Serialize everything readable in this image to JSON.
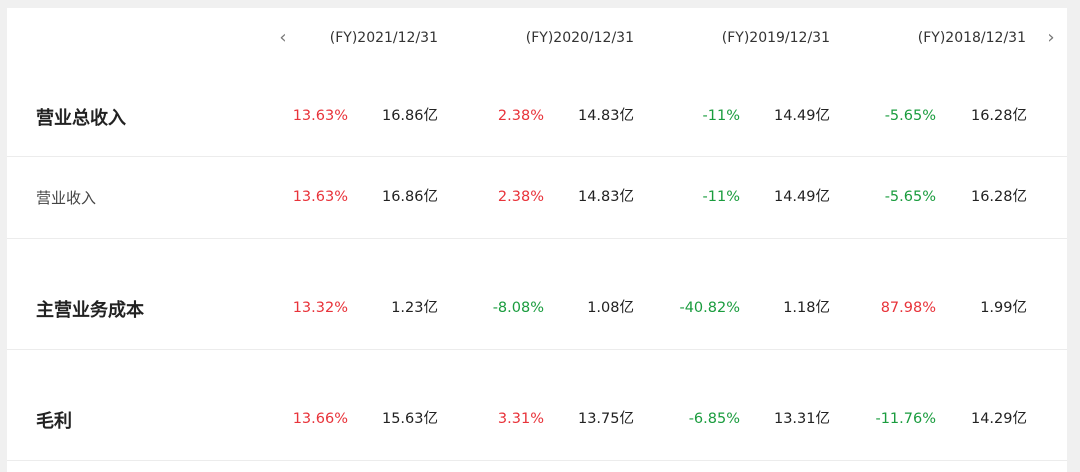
{
  "header": {
    "prev_icon": "‹",
    "next_icon": "›",
    "periods": [
      "(FY)2021/12/31",
      "(FY)2020/12/31",
      "(FY)2019/12/31",
      "(FY)2018/12/31"
    ]
  },
  "colors": {
    "increase": "#e8333a",
    "decrease": "#1a9c3e"
  },
  "rows": [
    {
      "label": "营业总收入",
      "style": "bold",
      "cells": [
        {
          "pct": "13.63%",
          "dir": "up",
          "value": "16.86亿"
        },
        {
          "pct": "2.38%",
          "dir": "up",
          "value": "14.83亿"
        },
        {
          "pct": "-11%",
          "dir": "down",
          "value": "14.49亿"
        },
        {
          "pct": "-5.65%",
          "dir": "down",
          "value": "16.28亿"
        }
      ]
    },
    {
      "label": "营业收入",
      "style": "normal",
      "cells": [
        {
          "pct": "13.63%",
          "dir": "up",
          "value": "16.86亿"
        },
        {
          "pct": "2.38%",
          "dir": "up",
          "value": "14.83亿"
        },
        {
          "pct": "-11%",
          "dir": "down",
          "value": "14.49亿"
        },
        {
          "pct": "-5.65%",
          "dir": "down",
          "value": "16.28亿"
        }
      ]
    },
    {
      "label": "主营业务成本",
      "style": "bold",
      "cells": [
        {
          "pct": "13.32%",
          "dir": "up",
          "value": "1.23亿"
        },
        {
          "pct": "-8.08%",
          "dir": "down",
          "value": "1.08亿"
        },
        {
          "pct": "-40.82%",
          "dir": "down",
          "value": "1.18亿"
        },
        {
          "pct": "87.98%",
          "dir": "up",
          "value": "1.99亿"
        }
      ]
    },
    {
      "label": "毛利",
      "style": "bold",
      "cells": [
        {
          "pct": "13.66%",
          "dir": "up",
          "value": "15.63亿"
        },
        {
          "pct": "3.31%",
          "dir": "up",
          "value": "13.75亿"
        },
        {
          "pct": "-6.85%",
          "dir": "down",
          "value": "13.31亿"
        },
        {
          "pct": "-11.76%",
          "dir": "down",
          "value": "14.29亿"
        }
      ]
    }
  ]
}
